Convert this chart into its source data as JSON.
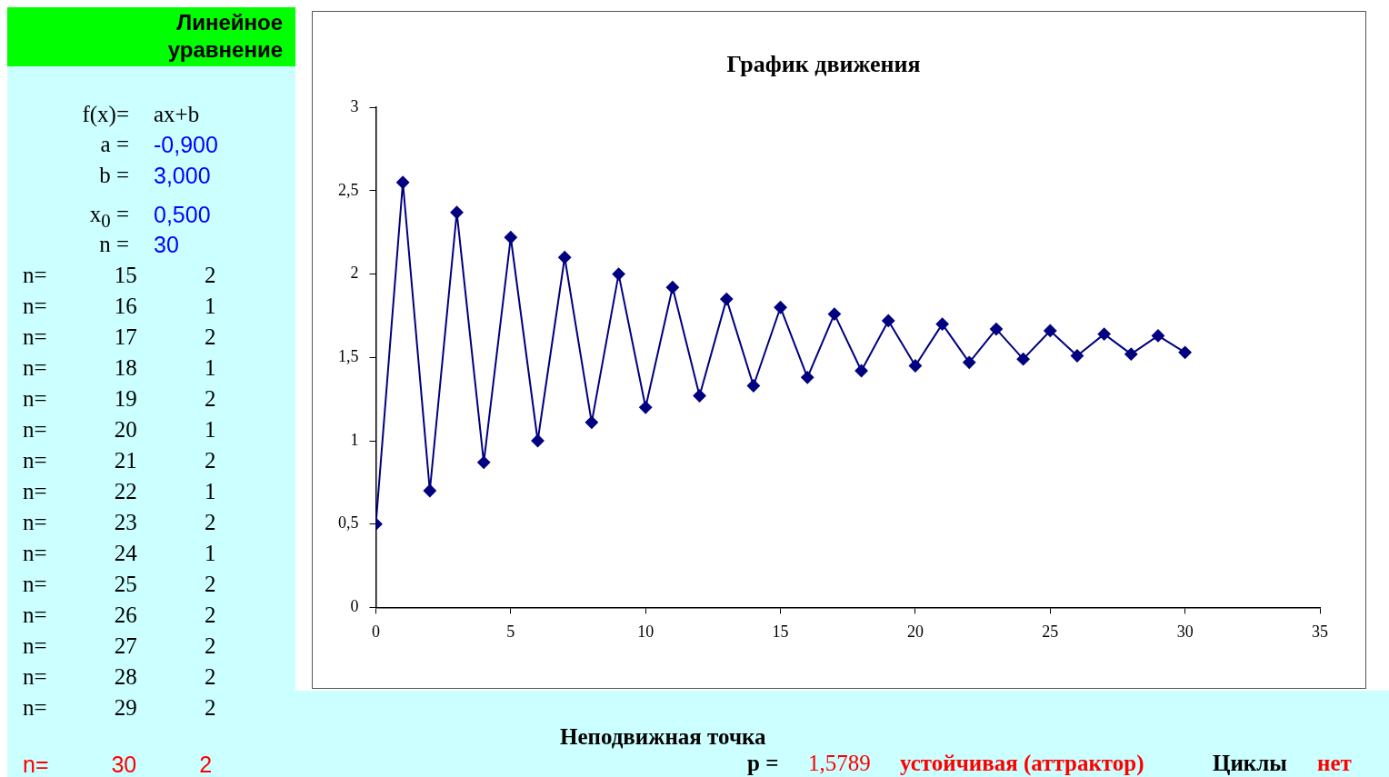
{
  "chart_data": [
    {
      "type": "line",
      "title": "График движения",
      "x": [
        0,
        1,
        2,
        3,
        4,
        5,
        6,
        7,
        8,
        9,
        10,
        11,
        12,
        13,
        14,
        15,
        16,
        17,
        18,
        19,
        20,
        21,
        22,
        23,
        24,
        25,
        26,
        27,
        28,
        29,
        30
      ],
      "series": [
        {
          "color": "#000080",
          "values": [
            0.5,
            2.55,
            0.7,
            2.37,
            0.87,
            2.22,
            1.0,
            2.1,
            1.11,
            2.0,
            1.2,
            1.92,
            1.27,
            1.85,
            1.33,
            1.8,
            1.38,
            1.76,
            1.42,
            1.72,
            1.45,
            1.7,
            1.47,
            1.67,
            1.49,
            1.66,
            1.51,
            1.64,
            1.52,
            1.63,
            1.53
          ]
        }
      ],
      "xlim": [
        0,
        35
      ],
      "xticks": [
        0,
        5,
        10,
        15,
        20,
        25,
        30,
        35
      ],
      "ylim": [
        0,
        3
      ],
      "yticks": [
        0,
        {
          "value": 0.5,
          "label": "0,5"
        },
        1,
        {
          "value": 1.5,
          "label": "1,5"
        },
        2,
        {
          "value": 2.5,
          "label": "2,5"
        },
        3
      ],
      "grid": false,
      "legend": false,
      "marker": "diamond",
      "line_style": "solid"
    },
    {
      "type": "other",
      "title": "Линейное уравнение",
      "annotations": [
        "f(x)=",
        "ax+b",
        "a =",
        "-0,900",
        "b =",
        "3,000",
        "x$_{0}$ =",
        "0,500",
        "n =",
        "30",
        "n= 15 2",
        "n= 16 1",
        "n= 17 2",
        "n= 18 1",
        "n= 19 2",
        "n= 20 1",
        "n= 21 2",
        "n= 22 1",
        "n= 23 2",
        "n= 24 1",
        "n= 25 2",
        "n= 26 2",
        "n= 27 2",
        "n= 28 2",
        "n= 29 2",
        "n= 30 2",
        "Неподвижная точка",
        "p =",
        "1,5789",
        "устойчивая (аттрактор)",
        "Циклы",
        "нет"
      ]
    }
  ]
}
